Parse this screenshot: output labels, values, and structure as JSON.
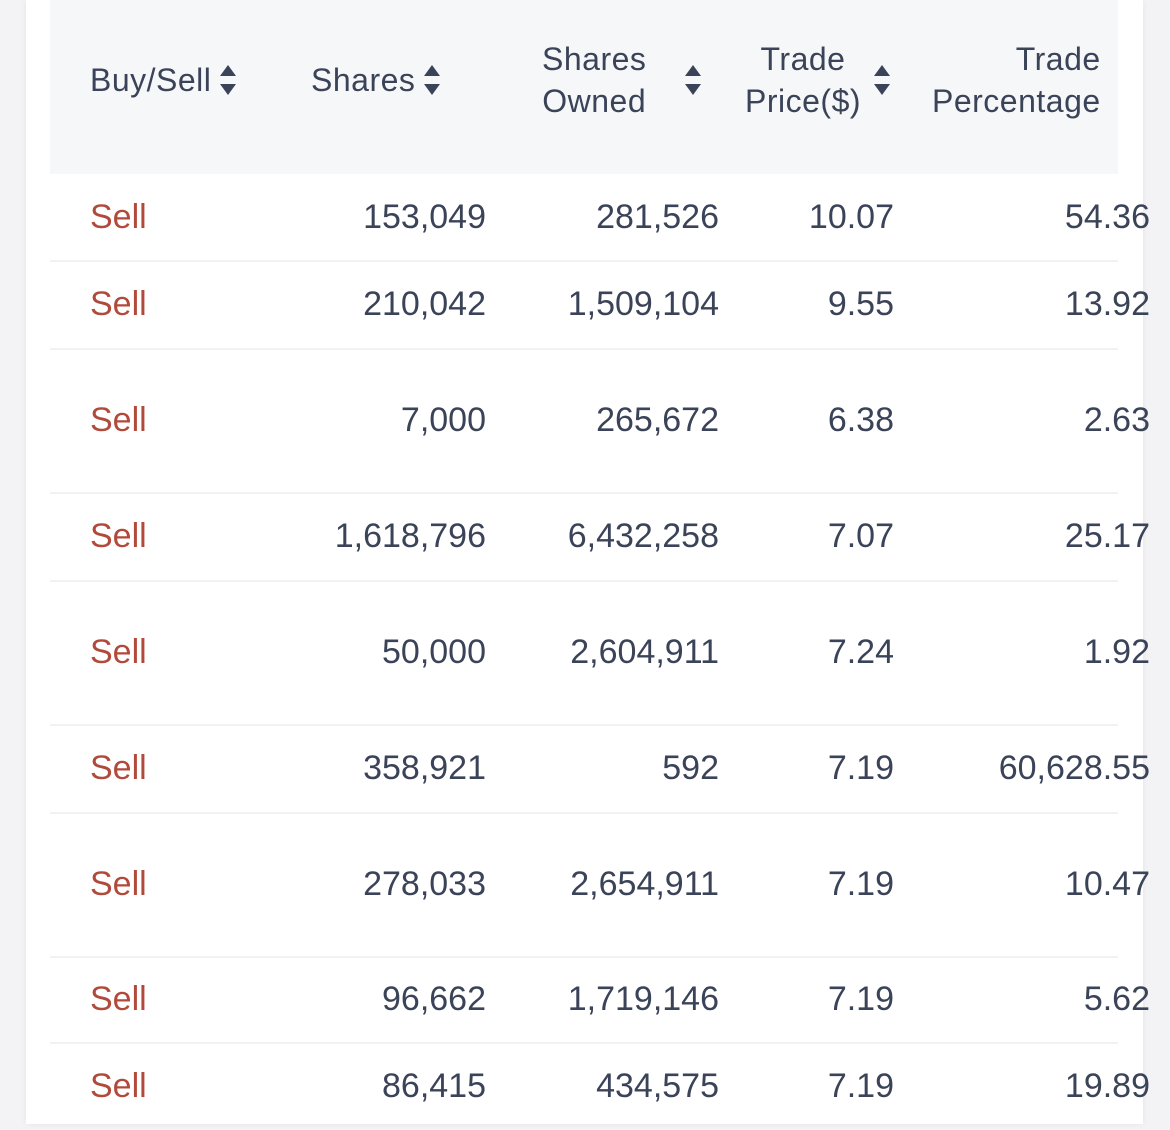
{
  "table": {
    "headers": {
      "buy_sell": "Buy/Sell",
      "shares": "Shares",
      "shares_owned": "Shares\nOwned",
      "trade_price": "Trade\nPrice($)",
      "trade_percentage": "Trade\nPercentage"
    },
    "rows": [
      {
        "type": "Sell",
        "shares": "153,049",
        "owned": "281,526",
        "price": "10.07",
        "pct": "54.36"
      },
      {
        "type": "Sell",
        "shares": "210,042",
        "owned": "1,509,104",
        "price": "9.55",
        "pct": "13.92"
      },
      {
        "type": "Sell",
        "shares": "7,000",
        "owned": "265,672",
        "price": "6.38",
        "pct": "2.63"
      },
      {
        "type": "Sell",
        "shares": "1,618,796",
        "owned": "6,432,258",
        "price": "7.07",
        "pct": "25.17"
      },
      {
        "type": "Sell",
        "shares": "50,000",
        "owned": "2,604,911",
        "price": "7.24",
        "pct": "1.92"
      },
      {
        "type": "Sell",
        "shares": "358,921",
        "owned": "592",
        "price": "7.19",
        "pct": "60,628.55"
      },
      {
        "type": "Sell",
        "shares": "278,033",
        "owned": "2,654,911",
        "price": "7.19",
        "pct": "10.47"
      },
      {
        "type": "Sell",
        "shares": "96,662",
        "owned": "1,719,146",
        "price": "7.19",
        "pct": "5.62"
      },
      {
        "type": "Sell",
        "shares": "86,415",
        "owned": "434,575",
        "price": "7.19",
        "pct": "19.89"
      }
    ]
  },
  "colors": {
    "sell_text": "#b24a3b",
    "body_text": "#3b4358",
    "header_bg": "#f6f7f9"
  }
}
